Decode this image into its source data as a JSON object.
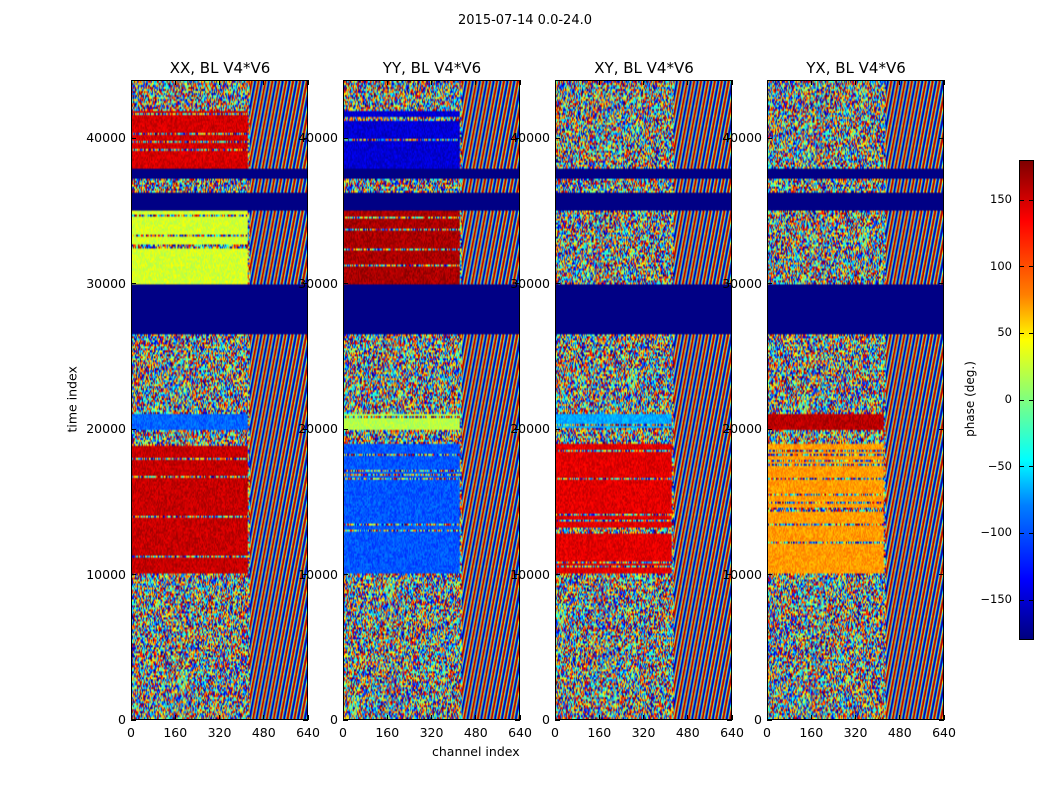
{
  "chart_data": {
    "type": "heatmap",
    "suptitle": "2015-07-14 0.0-24.0",
    "xlabel": "channel index",
    "ylabel": "time index",
    "xlim": [
      0,
      640
    ],
    "ylim": [
      0,
      44000
    ],
    "x_ticks": [
      "0",
      "160",
      "320",
      "480",
      "640"
    ],
    "y_ticks": [
      "0",
      "10000",
      "20000",
      "30000",
      "40000"
    ],
    "panels": [
      {
        "title": "XX, BL V4*V6",
        "dominant_phase_deg": [
          {
            "time_range": [
              20000,
              21000
            ],
            "value": -100
          },
          {
            "time_range": [
              10000,
              19000
            ],
            "value": 155
          },
          {
            "time_range": [
              38000,
              42000
            ],
            "value": 150
          },
          {
            "time_range": [
              30000,
              35000
            ],
            "value": 30
          }
        ]
      },
      {
        "title": "YY, BL V4*V6",
        "dominant_phase_deg": [
          {
            "time_range": [
              20000,
              21000
            ],
            "value": 20
          },
          {
            "time_range": [
              10000,
              19000
            ],
            "value": -105
          },
          {
            "time_range": [
              38000,
              42000
            ],
            "value": -150
          },
          {
            "time_range": [
              30000,
              35000
            ],
            "value": 165
          }
        ]
      },
      {
        "title": "XY, BL V4*V6",
        "dominant_phase_deg": [
          {
            "time_range": [
              20000,
              21000
            ],
            "value": -75
          },
          {
            "time_range": [
              10000,
              19000
            ],
            "value": 145
          },
          {
            "time_range": [
              38000,
              42000
            ],
            "value": "noise"
          },
          {
            "time_range": [
              30000,
              35000
            ],
            "value": "noise"
          }
        ]
      },
      {
        "title": "YX, BL V4*V6",
        "dominant_phase_deg": [
          {
            "time_range": [
              20000,
              21000
            ],
            "value": 160
          },
          {
            "time_range": [
              10000,
              19000
            ],
            "value": 80
          },
          {
            "time_range": [
              38000,
              42000
            ],
            "value": "noise"
          },
          {
            "time_range": [
              30000,
              35000
            ],
            "value": "noise"
          }
        ]
      }
    ],
    "flagged_time_ranges": [
      [
        26500,
        30000
      ],
      [
        35000,
        36300
      ],
      [
        37200,
        38000
      ]
    ],
    "colorbar": {
      "label": "phase (deg.)",
      "range": [
        -180,
        180
      ],
      "ticks": [
        "−150",
        "−100",
        "−50",
        "0",
        "50",
        "100",
        "150"
      ],
      "tick_values": [
        -150,
        -100,
        -50,
        0,
        50,
        100,
        150
      ],
      "colormap": "jet"
    }
  }
}
